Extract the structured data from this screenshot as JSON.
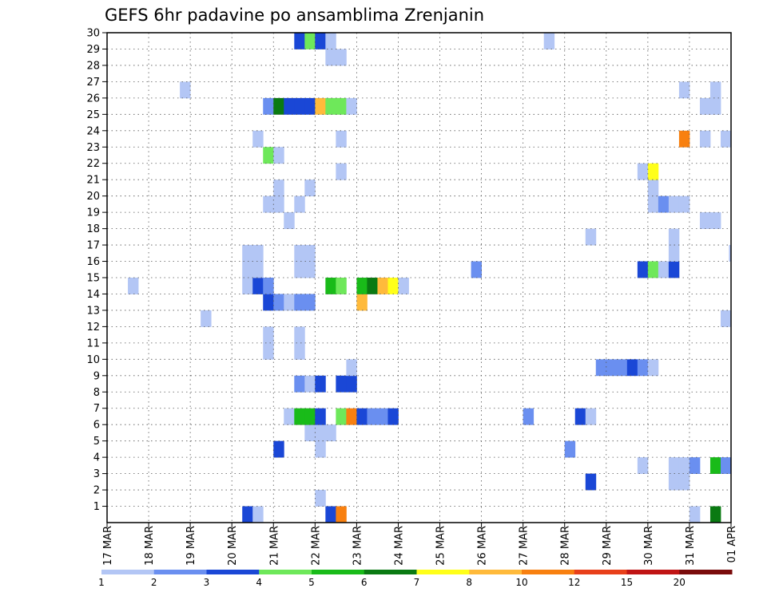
{
  "chart_data": {
    "type": "heatmap",
    "title": "GEFS 6hr padavine po ansamblima Zrenjanin",
    "xlabel": "",
    "ylabel": "",
    "x_tick_labels": [
      "17 MAR",
      "18 MAR",
      "19 MAR",
      "20 MAR",
      "21 MAR",
      "22 MAR",
      "23 MAR",
      "24 MAR",
      "25 MAR",
      "26 MAR",
      "27 MAR",
      "28 MAR",
      "29 MAR",
      "30 MAR",
      "31 MAR",
      "01 APR"
    ],
    "xlim_days": [
      0,
      15
    ],
    "y_tick_labels": [
      "1",
      "2",
      "3",
      "4",
      "5",
      "6",
      "7",
      "8",
      "9",
      "10",
      "11",
      "12",
      "13",
      "14",
      "15",
      "16",
      "17",
      "18",
      "19",
      "20",
      "21",
      "22",
      "23",
      "24",
      "25",
      "26",
      "27",
      "28",
      "29",
      "30"
    ],
    "ylim": [
      0,
      30
    ],
    "grid": true,
    "grid_style": "dotted",
    "legend_position": "bottom",
    "legend_bins": [
      {
        "min": 1,
        "color": "#b3c6f5"
      },
      {
        "min": 2,
        "color": "#6a8ff0"
      },
      {
        "min": 3,
        "color": "#1a47d6"
      },
      {
        "min": 4,
        "color": "#6ee85a"
      },
      {
        "min": 5,
        "color": "#19bb19"
      },
      {
        "min": 6,
        "color": "#0a7a12"
      },
      {
        "min": 7,
        "color": "#ffff19"
      },
      {
        "min": 8,
        "color": "#ffba3b"
      },
      {
        "min": 10,
        "color": "#f88010"
      },
      {
        "min": 12,
        "color": "#e8401a"
      },
      {
        "min": 15,
        "color": "#c01414"
      },
      {
        "min": 20,
        "color": "#7a0b0b"
      }
    ],
    "legend_labels": [
      "1",
      "2",
      "3",
      "4",
      "5",
      "6",
      "7",
      "8",
      "10",
      "12",
      "15",
      "20"
    ],
    "cells": [
      {
        "member": 0,
        "day": 5.25,
        "value": 3
      },
      {
        "member": 0,
        "day": 5.5,
        "value": 10
      },
      {
        "member": 0,
        "day": 14.5,
        "value": 6
      },
      {
        "member": 0,
        "day": 3.25,
        "value": 3
      },
      {
        "member": 0,
        "day": 3.5,
        "value": 1
      },
      {
        "member": 0,
        "day": 14.0,
        "value": 1
      },
      {
        "member": 1,
        "day": 5.0,
        "value": 1
      },
      {
        "member": 2,
        "day": 11.5,
        "value": 3
      },
      {
        "member": 2,
        "day": 13.5,
        "value": 1
      },
      {
        "member": 2,
        "day": 13.75,
        "value": 1
      },
      {
        "member": 3,
        "day": 12.75,
        "value": 1
      },
      {
        "member": 3,
        "day": 13.5,
        "value": 1
      },
      {
        "member": 3,
        "day": 13.75,
        "value": 1
      },
      {
        "member": 3,
        "day": 14.0,
        "value": 2
      },
      {
        "member": 3,
        "day": 14.5,
        "value": 5
      },
      {
        "member": 3,
        "day": 14.75,
        "value": 2
      },
      {
        "member": 4,
        "day": 4.0,
        "value": 3
      },
      {
        "member": 4,
        "day": 5.0,
        "value": 1
      },
      {
        "member": 4,
        "day": 11.0,
        "value": 2
      },
      {
        "member": 5,
        "day": 4.75,
        "value": 1
      },
      {
        "member": 5,
        "day": 5.0,
        "value": 1
      },
      {
        "member": 5,
        "day": 5.25,
        "value": 1
      },
      {
        "member": 6,
        "day": 4.25,
        "value": 1
      },
      {
        "member": 6,
        "day": 4.5,
        "value": 5
      },
      {
        "member": 6,
        "day": 4.75,
        "value": 5
      },
      {
        "member": 6,
        "day": 5.0,
        "value": 3
      },
      {
        "member": 6,
        "day": 5.5,
        "value": 4
      },
      {
        "member": 6,
        "day": 5.75,
        "value": 10
      },
      {
        "member": 6,
        "day": 6.0,
        "value": 3
      },
      {
        "member": 6,
        "day": 6.25,
        "value": 2
      },
      {
        "member": 6,
        "day": 6.5,
        "value": 2
      },
      {
        "member": 6,
        "day": 6.75,
        "value": 3
      },
      {
        "member": 6,
        "day": 10.0,
        "value": 2
      },
      {
        "member": 6,
        "day": 11.25,
        "value": 3
      },
      {
        "member": 6,
        "day": 11.5,
        "value": 1
      },
      {
        "member": 8,
        "day": 4.5,
        "value": 2
      },
      {
        "member": 8,
        "day": 4.75,
        "value": 1
      },
      {
        "member": 8,
        "day": 5.0,
        "value": 3
      },
      {
        "member": 8,
        "day": 5.5,
        "value": 3
      },
      {
        "member": 8,
        "day": 5.75,
        "value": 3
      },
      {
        "member": 9,
        "day": 5.75,
        "value": 1
      },
      {
        "member": 9,
        "day": 11.75,
        "value": 2
      },
      {
        "member": 9,
        "day": 12.0,
        "value": 2
      },
      {
        "member": 9,
        "day": 12.25,
        "value": 2
      },
      {
        "member": 9,
        "day": 12.5,
        "value": 3
      },
      {
        "member": 9,
        "day": 12.75,
        "value": 2
      },
      {
        "member": 9,
        "day": 13.0,
        "value": 1
      },
      {
        "member": 10,
        "day": 3.75,
        "value": 1
      },
      {
        "member": 10,
        "day": 4.5,
        "value": 1
      },
      {
        "member": 11,
        "day": 3.75,
        "value": 1
      },
      {
        "member": 11,
        "day": 4.5,
        "value": 1
      },
      {
        "member": 12,
        "day": 2.25,
        "value": 1
      },
      {
        "member": 12,
        "day": 14.75,
        "value": 1
      },
      {
        "member": 13,
        "day": 3.75,
        "value": 3
      },
      {
        "member": 13,
        "day": 4.0,
        "value": 2
      },
      {
        "member": 13,
        "day": 4.25,
        "value": 1
      },
      {
        "member": 13,
        "day": 4.5,
        "value": 2
      },
      {
        "member": 13,
        "day": 4.75,
        "value": 2
      },
      {
        "member": 13,
        "day": 6.0,
        "value": 8
      },
      {
        "member": 14,
        "day": 0.5,
        "value": 1
      },
      {
        "member": 14,
        "day": 3.25,
        "value": 1
      },
      {
        "member": 14,
        "day": 3.5,
        "value": 3
      },
      {
        "member": 14,
        "day": 3.75,
        "value": 2
      },
      {
        "member": 14,
        "day": 5.25,
        "value": 5
      },
      {
        "member": 14,
        "day": 5.5,
        "value": 4
      },
      {
        "member": 14,
        "day": 6.0,
        "value": 5
      },
      {
        "member": 14,
        "day": 6.25,
        "value": 6
      },
      {
        "member": 14,
        "day": 6.5,
        "value": 8
      },
      {
        "member": 14,
        "day": 6.75,
        "value": 7
      },
      {
        "member": 14,
        "day": 7.0,
        "value": 1
      },
      {
        "member": 15,
        "day": 3.25,
        "value": 1
      },
      {
        "member": 15,
        "day": 3.5,
        "value": 1
      },
      {
        "member": 15,
        "day": 4.5,
        "value": 1
      },
      {
        "member": 15,
        "day": 4.75,
        "value": 1
      },
      {
        "member": 15,
        "day": 8.75,
        "value": 2
      },
      {
        "member": 15,
        "day": 12.75,
        "value": 3
      },
      {
        "member": 15,
        "day": 13.0,
        "value": 4
      },
      {
        "member": 15,
        "day": 13.25,
        "value": 1
      },
      {
        "member": 15,
        "day": 13.5,
        "value": 3
      },
      {
        "member": 16,
        "day": 3.25,
        "value": 1
      },
      {
        "member": 16,
        "day": 3.5,
        "value": 1
      },
      {
        "member": 16,
        "day": 4.5,
        "value": 1
      },
      {
        "member": 16,
        "day": 4.75,
        "value": 1
      },
      {
        "member": 16,
        "day": 13.5,
        "value": 1
      },
      {
        "member": 16,
        "day": 14.95,
        "value": 1
      },
      {
        "member": 17,
        "day": 11.5,
        "value": 1
      },
      {
        "member": 17,
        "day": 13.5,
        "value": 1
      },
      {
        "member": 18,
        "day": 4.25,
        "value": 1
      },
      {
        "member": 18,
        "day": 14.25,
        "value": 1
      },
      {
        "member": 18,
        "day": 14.5,
        "value": 1
      },
      {
        "member": 19,
        "day": 3.75,
        "value": 1
      },
      {
        "member": 19,
        "day": 4.0,
        "value": 1
      },
      {
        "member": 19,
        "day": 4.5,
        "value": 1
      },
      {
        "member": 19,
        "day": 13.0,
        "value": 1
      },
      {
        "member": 19,
        "day": 13.25,
        "value": 2
      },
      {
        "member": 19,
        "day": 13.5,
        "value": 1
      },
      {
        "member": 19,
        "day": 13.75,
        "value": 1
      },
      {
        "member": 20,
        "day": 4.75,
        "value": 1
      },
      {
        "member": 20,
        "day": 4.0,
        "value": 1
      },
      {
        "member": 20,
        "day": 13.0,
        "value": 1
      },
      {
        "member": 21,
        "day": 5.5,
        "value": 1
      },
      {
        "member": 21,
        "day": 12.75,
        "value": 1
      },
      {
        "member": 21,
        "day": 13.0,
        "value": 7
      },
      {
        "member": 22,
        "day": 3.75,
        "value": 4
      },
      {
        "member": 22,
        "day": 4.0,
        "value": 1
      },
      {
        "member": 23,
        "day": 3.5,
        "value": 1
      },
      {
        "member": 23,
        "day": 5.5,
        "value": 1
      },
      {
        "member": 23,
        "day": 13.75,
        "value": 10
      },
      {
        "member": 23,
        "day": 14.25,
        "value": 1
      },
      {
        "member": 23,
        "day": 14.75,
        "value": 1
      },
      {
        "member": 25,
        "day": 3.75,
        "value": 2
      },
      {
        "member": 25,
        "day": 4.0,
        "value": 6
      },
      {
        "member": 25,
        "day": 4.25,
        "value": 3
      },
      {
        "member": 25,
        "day": 4.5,
        "value": 3
      },
      {
        "member": 25,
        "day": 4.75,
        "value": 3
      },
      {
        "member": 25,
        "day": 5.0,
        "value": 8
      },
      {
        "member": 25,
        "day": 5.25,
        "value": 4
      },
      {
        "member": 25,
        "day": 5.5,
        "value": 4
      },
      {
        "member": 25,
        "day": 5.75,
        "value": 1
      },
      {
        "member": 25,
        "day": 14.25,
        "value": 1
      },
      {
        "member": 25,
        "day": 14.5,
        "value": 1
      },
      {
        "member": 26,
        "day": 1.75,
        "value": 1
      },
      {
        "member": 26,
        "day": 13.75,
        "value": 1
      },
      {
        "member": 26,
        "day": 14.5,
        "value": 1
      },
      {
        "member": 28,
        "day": 5.25,
        "value": 1
      },
      {
        "member": 28,
        "day": 5.5,
        "value": 1
      },
      {
        "member": 29,
        "day": 4.5,
        "value": 3
      },
      {
        "member": 29,
        "day": 4.75,
        "value": 4
      },
      {
        "member": 29,
        "day": 5.0,
        "value": 3
      },
      {
        "member": 29,
        "day": 5.25,
        "value": 1
      },
      {
        "member": 29,
        "day": 10.5,
        "value": 1
      }
    ]
  }
}
